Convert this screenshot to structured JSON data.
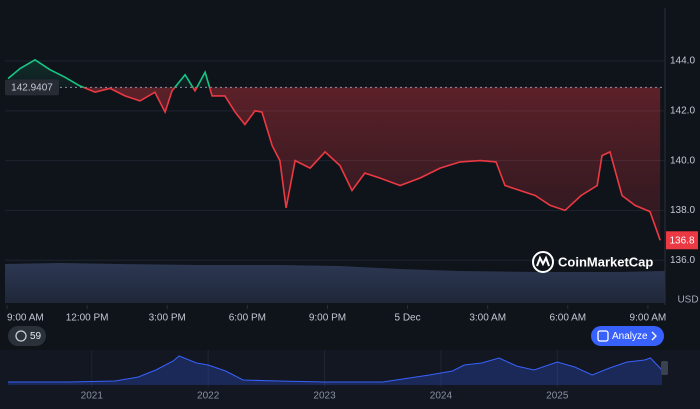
{
  "chart_data": [
    {
      "type": "line",
      "x": [
        0.04,
        0.49,
        1.05,
        1.61,
        2.17,
        2.73,
        3.3,
        3.86,
        4.42,
        4.98,
        5.54,
        5.92,
        6.18,
        6.67,
        7.04,
        7.42,
        7.68,
        8.16,
        8.54,
        8.91,
        9.29,
        9.55,
        9.93,
        10.22,
        10.45,
        10.79,
        11.35,
        11.91,
        12.47,
        12.92,
        13.4,
        13.96,
        14.72,
        15.47,
        16.22,
        16.97,
        17.72,
        18.31,
        18.65,
        19.21,
        19.78,
        20.34,
        20.9,
        21.5,
        22.1,
        22.28,
        22.58,
        23.03,
        23.52,
        24.08,
        24.46
      ],
      "series": [
        {
          "name": "Price",
          "color": "#ea3943",
          "up_color": "#16c784",
          "values": [
            143.3,
            143.7,
            144.05,
            143.65,
            143.35,
            143.0,
            142.75,
            142.9,
            142.6,
            142.4,
            142.75,
            141.95,
            142.8,
            143.45,
            142.8,
            143.55,
            142.6,
            142.6,
            141.95,
            141.45,
            142.0,
            141.95,
            140.6,
            140.0,
            138.1,
            140.0,
            139.7,
            140.35,
            139.8,
            138.8,
            139.5,
            139.3,
            139.0,
            139.3,
            139.7,
            139.95,
            140.0,
            139.95,
            139.0,
            138.8,
            138.6,
            138.2,
            138.0,
            138.6,
            139.0,
            140.2,
            140.35,
            138.6,
            138.2,
            137.95,
            136.8
          ]
        }
      ],
      "xlim": [
        0,
        24.64
      ],
      "xticks": [
        {
          "value": 0,
          "label": "9:00 AM"
        },
        {
          "value": 3,
          "label": "12:00 PM"
        },
        {
          "value": 6,
          "label": "3:00 PM"
        },
        {
          "value": 9,
          "label": "6:00 PM"
        },
        {
          "value": 12,
          "label": "9:00 PM"
        },
        {
          "value": 15,
          "label": "5 Dec"
        },
        {
          "value": 18,
          "label": "3:00 AM"
        },
        {
          "value": 21,
          "label": "6:00 AM"
        },
        {
          "value": 24,
          "label": "9:00 AM"
        }
      ],
      "ylim": [
        134.2,
        146.05
      ],
      "yticks": [
        {
          "value": 136,
          "label": "136.0"
        },
        {
          "value": 138,
          "label": "138.0"
        },
        {
          "value": 140,
          "label": "140.0"
        },
        {
          "value": 142,
          "label": "142.0"
        },
        {
          "value": 144,
          "label": "144.0"
        }
      ],
      "y_label": "USD",
      "baseline": 142.9407,
      "current_price": 136.8,
      "grid": true
    },
    {
      "type": "area",
      "x": [
        2020.28,
        2020.8,
        2021.2,
        2021.4,
        2021.55,
        2021.7,
        2021.75,
        2021.9,
        2022.0,
        2022.15,
        2022.3,
        2022.6,
        2023.0,
        2023.5,
        2023.9,
        2024.1,
        2024.2,
        2024.35,
        2024.5,
        2024.65,
        2024.8,
        2025.0,
        2025.15,
        2025.3,
        2025.45,
        2025.6,
        2025.75,
        2025.8,
        2025.9
      ],
      "series": [
        {
          "name": "History",
          "color": "#3861fb",
          "values": [
            3,
            3,
            4,
            8,
            15,
            24,
            29,
            22,
            20,
            14,
            5,
            4,
            3,
            3,
            10,
            14,
            20,
            22,
            27,
            19,
            15,
            23,
            18,
            10,
            17,
            23,
            25,
            27,
            15
          ]
        }
      ],
      "xlim": [
        2020.28,
        2025.9
      ],
      "xticks": [
        2021,
        2022,
        2023,
        2024,
        2025
      ],
      "ylim": [
        0,
        32
      ]
    }
  ],
  "ui": {
    "watermark": "CoinMarketCap",
    "badge": "59",
    "button": "Analyze"
  }
}
